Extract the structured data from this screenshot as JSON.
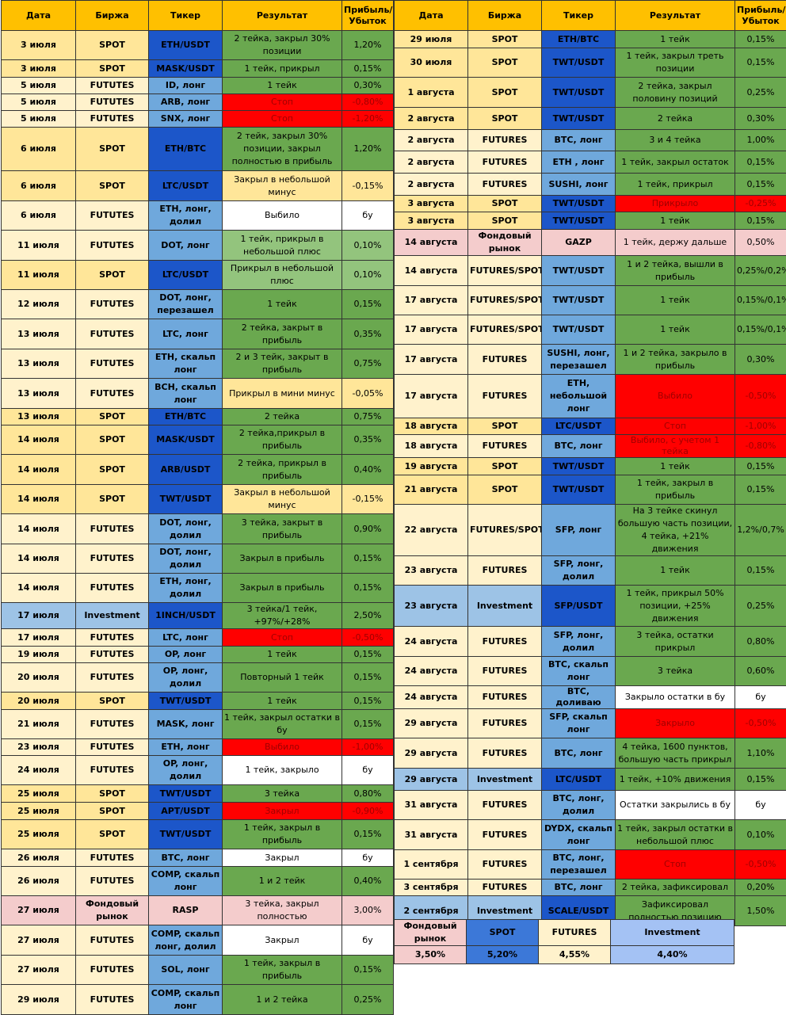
{
  "headers": [
    "Дата",
    "Биржа",
    "Тикер",
    "Результат",
    "Прибыль/ Убыток"
  ],
  "colors": {
    "header": "#ffc000",
    "spot_cell": "#ffe699",
    "futures_cell": "#fff2cc",
    "investment_cell": "#9dc3e6",
    "stock_cell": "#f4cccc",
    "ticker_spot": "#1c56c9",
    "ticker_futures": "#6fa8dc",
    "green": "#6aa84f",
    "light_green": "#93c47d",
    "red": "#ff0000",
    "red_text": "#a00000",
    "yellow": "#ffe699",
    "white": "#ffffff",
    "pink": "#f4cccc"
  },
  "left_rows": [
    [
      "3 июля",
      "SPOT",
      "ETH/USDT",
      "2 тейка, закрыл 30% позиции",
      "1,20%",
      "s",
      "g"
    ],
    [
      "3 июля",
      "SPOT",
      "MASK/USDT",
      "1 тейк, прикрыл",
      "0,15%",
      "s",
      "g"
    ],
    [
      "5 июля",
      "FUTUTES",
      "ID, лонг",
      "1 тейк",
      "0,30%",
      "f",
      "g"
    ],
    [
      "5 июля",
      "FUTUTES",
      "ARB, лонг",
      "Стоп",
      "-0,80%",
      "f",
      "r"
    ],
    [
      "5 июля",
      "FUTUTES",
      "SNX, лонг",
      "Стоп",
      "-1,20%",
      "f",
      "r"
    ],
    [
      "6 июля",
      "SPOT",
      "ETH/BTC",
      "2 тейк, закрыл 30% позиции, закрыл полностью в прибыль",
      "1,20%",
      "s",
      "g"
    ],
    [
      "6 июля",
      "SPOT",
      "LTC/USDT",
      "Закрыл в небольшой минус",
      "-0,15%",
      "s",
      "y"
    ],
    [
      "6 июля",
      "FUTUTES",
      "ETH, лонг, долил",
      "Выбило",
      "бу",
      "f",
      "w"
    ],
    [
      "11 июля",
      "FUTUTES",
      "DOT, лонг",
      "1 тейк, прикрыл в небольшой плюс",
      "0,10%",
      "f",
      "lg"
    ],
    [
      "11 июля",
      "SPOT",
      "LTC/USDT",
      "Прикрыл в небольшой плюс",
      "0,10%",
      "s",
      "lg"
    ],
    [
      "12 июля",
      "FUTUTES",
      "DOT, лонг, перезашел",
      "1 тейк",
      "0,15%",
      "f",
      "g"
    ],
    [
      "13 июля",
      "FUTUTES",
      "LTC, лонг",
      "2 тейка, закрыт в прибыль",
      "0,35%",
      "f",
      "g"
    ],
    [
      "13 июля",
      "FUTUTES",
      "ETH, скальп лонг",
      "2 и 3 тейк, закрыт в прибыль",
      "0,75%",
      "f",
      "g"
    ],
    [
      "13 июля",
      "FUTUTES",
      "BCH, скальп лонг",
      "Прикрыл в мини минус",
      "-0,05%",
      "f",
      "y"
    ],
    [
      "13 июля",
      "SPOT",
      "ETH/BTC",
      "2 тейка",
      "0,75%",
      "s",
      "g"
    ],
    [
      "14 июля",
      "SPOT",
      "MASK/USDT",
      "2 тейка,прикрыл в прибыль",
      "0,35%",
      "s",
      "g"
    ],
    [
      "14 июля",
      "SPOT",
      "ARB/USDT",
      "2 тейка, прикрыл в прибыль",
      "0,40%",
      "s",
      "g"
    ],
    [
      "14 июля",
      "SPOT",
      "TWT/USDT",
      "Закрыл в небольшой минус",
      "-0,15%",
      "s",
      "y"
    ],
    [
      "14 июля",
      "FUTUTES",
      "DOT, лонг, долил",
      "3 тейка, закрыт в прибыль",
      "0,90%",
      "f",
      "g"
    ],
    [
      "14 июля",
      "FUTUTES",
      "DOT, лонг, долил",
      "Закрыл в прибыль",
      "0,15%",
      "f",
      "g"
    ],
    [
      "14 июля",
      "FUTUTES",
      "ETH, лонг, долил",
      "Закрыл в прибыль",
      "0,15%",
      "f",
      "g"
    ],
    [
      "17 июля",
      "Investment",
      "1INCH/USDT",
      "3 тейка/1 тейк, +97%/+28%",
      "2,50%",
      "i",
      "g"
    ],
    [
      "17 июля",
      "FUTUTES",
      "LTC, лонг",
      "Стоп",
      "-0,50%",
      "f",
      "r"
    ],
    [
      "19 июля",
      "FUTUTES",
      "OP, лонг",
      "1 тейк",
      "0,15%",
      "f",
      "g"
    ],
    [
      "20 июля",
      "FUTUTES",
      "OP, лонг, долил",
      "Повторный 1 тейк",
      "0,15%",
      "f",
      "g"
    ],
    [
      "20 июля",
      "SPOT",
      "TWT/USDT",
      "1 тейк",
      "0,15%",
      "s",
      "g"
    ],
    [
      "21 июля",
      "FUTUTES",
      "MASK, лонг",
      "1 тейк, закрыл остатки в бу",
      "0,15%",
      "f",
      "g"
    ],
    [
      "23 июля",
      "FUTUTES",
      "ETH, лонг",
      "Выбило",
      "-1,00%",
      "f",
      "r"
    ],
    [
      "24 июля",
      "FUTUTES",
      "OP, лонг, долил",
      "1 тейк, закрыло",
      "бу",
      "f",
      "w"
    ],
    [
      "25 июля",
      "SPOT",
      "TWT/USDT",
      "3 тейка",
      "0,80%",
      "s",
      "g"
    ],
    [
      "25 июля",
      "SPOT",
      "APT/USDT",
      "Закрыл",
      "-0,90%",
      "s",
      "r"
    ],
    [
      "25 июля",
      "SPOT",
      "TWT/USDT",
      "1 тейк, закрыл в прибыль",
      "0,15%",
      "s",
      "g"
    ],
    [
      "26 июля",
      "FUTUTES",
      "BTC, лонг",
      "Закрыл",
      "бу",
      "f",
      "w"
    ],
    [
      "26 июля",
      "FUTUTES",
      "COMP, скальп лонг",
      "1 и 2 тейк",
      "0,40%",
      "f",
      "g"
    ],
    [
      "27 июля",
      "Фондовый рынок",
      "RASP",
      "3 тейка, закрыл полностью",
      "3,00%",
      "m",
      "p"
    ],
    [
      "27 июля",
      "FUTUTES",
      "COMP, скальп лонг, долил",
      "Закрыл",
      "бу",
      "f",
      "w"
    ],
    [
      "27 июля",
      "FUTUTES",
      "SOL, лонг",
      "1 тейк, закрыл в прибыль",
      "0,15%",
      "f",
      "g"
    ],
    [
      "29 июля",
      "FUTUTES",
      "COMP, скальп лонг",
      "1 и 2 тейка",
      "0,25%",
      "f",
      "g"
    ]
  ],
  "right_rows": [
    [
      "29 июля",
      "SPOT",
      "ETH/BTC",
      "1 тейк",
      "0,15%",
      "s",
      "g"
    ],
    [
      "30 июля",
      "SPOT",
      "TWT/USDT",
      "1 тейк, закрыл треть позиции",
      "0,15%",
      "s",
      "g"
    ],
    [
      "1 августа",
      "SPOT",
      "TWT/USDT",
      "2 тейка, закрыл половину позиций",
      "0,25%",
      "s",
      "g"
    ],
    [
      "2 августа",
      "SPOT",
      "TWT/USDT",
      "2 тейка",
      "0,30%",
      "s",
      "g"
    ],
    [
      "2 августа",
      "FUTURES",
      "BTC, лонг",
      "3 и 4 тейка",
      "1,00%",
      "f",
      "g"
    ],
    [
      "2 августа",
      "FUTURES",
      "ETH , лонг",
      "1 тейк, закрыл остаток",
      "0,15%",
      "f",
      "g"
    ],
    [
      "2 августа",
      "FUTURES",
      "SUSHI, лонг",
      "1 тейк, прикрыл",
      "0,15%",
      "f",
      "g"
    ],
    [
      "3 августа",
      "SPOT",
      "TWT/USDT",
      "Прикрыло",
      "-0,25%",
      "s",
      "r"
    ],
    [
      "3 августа",
      "SPOT",
      "TWT/USDT",
      "1 тейк",
      "0,15%",
      "s",
      "g"
    ],
    [
      "14 августа",
      "Фондовый рынок",
      "GAZP",
      "1 тейк, держу дальше",
      "0,50%",
      "m",
      "p"
    ],
    [
      "14 августа",
      "FUTURES/SPOT",
      "TWT/USDT",
      "1 и 2 тейка, вышли в прибыль",
      "0,25%/0,2%",
      "f",
      "g"
    ],
    [
      "17 августа",
      "FUTURES/SPOT",
      "TWT/USDT",
      "1 тейк",
      "0,15%/0,1%",
      "f",
      "g"
    ],
    [
      "17 августа",
      "FUTURES/SPOT",
      "TWT/USDT",
      "1 тейк",
      "0,15%/0,1%",
      "f",
      "g"
    ],
    [
      "17 августа",
      "FUTURES",
      "SUSHI, лонг, перезашел",
      "1 и 2 тейка, закрыло в прибыль",
      "0,30%",
      "f",
      "g"
    ],
    [
      "17 августа",
      "FUTURES",
      "ETH, небольшой лонг",
      "Выбило",
      "-0,50%",
      "f",
      "r"
    ],
    [
      "18 августа",
      "SPOT",
      "LTC/USDT",
      "Стоп",
      "-1,00%",
      "s",
      "r"
    ],
    [
      "18 августа",
      "FUTURES",
      "BTC, лонг",
      "Выбило, с учетом 1 тейка",
      "-0,80%",
      "f",
      "r"
    ],
    [
      "19 августа",
      "SPOT",
      "TWT/USDT",
      "1 тейк",
      "0,15%",
      "s",
      "g"
    ],
    [
      "21 августа",
      "SPOT",
      "TWT/USDT",
      "1 тейк, закрыл в прибыль",
      "0,15%",
      "s",
      "g"
    ],
    [
      "22 августа",
      "FUTURES/SPOT",
      "SFP, лонг",
      "На 3 тейке скинул большую часть позиции, 4 тейка, +21% движения",
      "1,2%/0,7%",
      "f",
      "g"
    ],
    [
      "23 августа",
      "FUTURES",
      "SFP, лонг, долил",
      "1 тейк",
      "0,15%",
      "f",
      "g"
    ],
    [
      "23 августа",
      "Investment",
      "SFP/USDT",
      "1 тейк, прикрыл 50% позиции, +25% движения",
      "0,25%",
      "i",
      "g"
    ],
    [
      "24 августа",
      "FUTURES",
      "SFP, лонг, долил",
      "3 тейка, остатки прикрыл",
      "0,80%",
      "f",
      "g"
    ],
    [
      "24 августа",
      "FUTURES",
      "BTC, скальп лонг",
      "3 тейка",
      "0,60%",
      "f",
      "g"
    ],
    [
      "24 августа",
      "FUTURES",
      "BTC, доливаю",
      "Закрыло остатки в бу",
      "бу",
      "f",
      "w"
    ],
    [
      "29 августа",
      "FUTURES",
      "SFP, скальп лонг",
      "Закрыло",
      "-0,50%",
      "f",
      "r"
    ],
    [
      "29 августа",
      "FUTURES",
      "BTC, лонг",
      "4 тейка, 1600 пунктов, большую часть прикрыл",
      "1,10%",
      "f",
      "g"
    ],
    [
      "29 августа",
      "Investment",
      "LTC/USDT",
      "1 тейк, +10% движения",
      "0,15%",
      "i",
      "g"
    ],
    [
      "31 августа",
      "FUTURES",
      "BTC, лонг, долил",
      "Остатки закрылись в бу",
      "бу",
      "f",
      "w"
    ],
    [
      "31 августа",
      "FUTURES",
      "DYDX, скальп лонг",
      "1 тейк, закрыл остатки в небольшой плюс",
      "0,10%",
      "f",
      "g"
    ],
    [
      "1 сентября",
      "FUTURES",
      "BTC, лонг, перезашел",
      "Стоп",
      "-0,50%",
      "f",
      "r"
    ],
    [
      "3 сентября",
      "FUTURES",
      "BTC, лонг",
      "2 тейка, зафиксировал",
      "0,20%",
      "f",
      "g"
    ],
    [
      "2 сентября",
      "Investment",
      "SCALE/USDT",
      "Зафиксировал полностью позицию",
      "1,50%",
      "i",
      "g"
    ]
  ],
  "summary": {
    "labels": [
      "Фондовый рынок",
      "SPOT",
      "FUTURES",
      "Investment"
    ],
    "values": [
      "3,50%",
      "5,20%",
      "4,55%",
      "4,40%"
    ],
    "colors": [
      "#f4cccc",
      "#3c78d8",
      "#fff2cc",
      "#a4c2f4"
    ]
  }
}
